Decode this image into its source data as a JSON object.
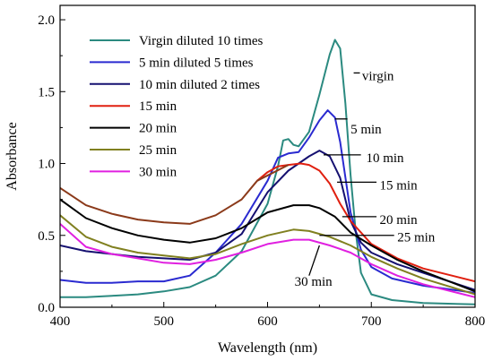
{
  "chart_data": {
    "type": "line",
    "xlabel": "Wavelength (nm)",
    "ylabel": "Absorbance",
    "xlim": [
      400,
      800
    ],
    "ylim": [
      0.0,
      2.1
    ],
    "xticks": [
      "400",
      "500",
      "600",
      "700",
      "800"
    ],
    "xtick_values": [
      400,
      500,
      600,
      700,
      800
    ],
    "yticks": [
      "0.0",
      "0.5",
      "1.0",
      "1.5",
      "2.0"
    ],
    "ytick_values": [
      0.0,
      0.5,
      1.0,
      1.5,
      2.0
    ],
    "grid": false,
    "legend_position": "top-left",
    "series": [
      {
        "name": "Virgin diluted 10 times",
        "color": "#2b8a80",
        "points": [
          [
            400,
            0.07
          ],
          [
            425,
            0.07
          ],
          [
            450,
            0.08
          ],
          [
            475,
            0.09
          ],
          [
            500,
            0.11
          ],
          [
            525,
            0.14
          ],
          [
            550,
            0.22
          ],
          [
            575,
            0.39
          ],
          [
            600,
            0.72
          ],
          [
            610,
            0.98
          ],
          [
            615,
            1.16
          ],
          [
            620,
            1.17
          ],
          [
            625,
            1.13
          ],
          [
            630,
            1.12
          ],
          [
            640,
            1.22
          ],
          [
            650,
            1.48
          ],
          [
            660,
            1.76
          ],
          [
            665,
            1.86
          ],
          [
            670,
            1.8
          ],
          [
            675,
            1.42
          ],
          [
            680,
            0.92
          ],
          [
            685,
            0.52
          ],
          [
            690,
            0.24
          ],
          [
            700,
            0.09
          ],
          [
            720,
            0.05
          ],
          [
            750,
            0.03
          ],
          [
            800,
            0.02
          ]
        ]
      },
      {
        "name": "5 min diluted 5 times",
        "color": "#2a2ad0",
        "points": [
          [
            400,
            0.19
          ],
          [
            425,
            0.17
          ],
          [
            450,
            0.17
          ],
          [
            475,
            0.18
          ],
          [
            500,
            0.18
          ],
          [
            525,
            0.22
          ],
          [
            550,
            0.38
          ],
          [
            575,
            0.58
          ],
          [
            600,
            0.88
          ],
          [
            610,
            1.04
          ],
          [
            620,
            1.07
          ],
          [
            630,
            1.08
          ],
          [
            640,
            1.18
          ],
          [
            650,
            1.3
          ],
          [
            658,
            1.37
          ],
          [
            665,
            1.32
          ],
          [
            670,
            1.15
          ],
          [
            680,
            0.66
          ],
          [
            690,
            0.4
          ],
          [
            700,
            0.28
          ],
          [
            720,
            0.2
          ],
          [
            750,
            0.15
          ],
          [
            800,
            0.1
          ]
        ]
      },
      {
        "name": "10 min diluted 2 times",
        "color": "#151070",
        "points": [
          [
            400,
            0.43
          ],
          [
            425,
            0.39
          ],
          [
            450,
            0.37
          ],
          [
            475,
            0.35
          ],
          [
            500,
            0.34
          ],
          [
            525,
            0.33
          ],
          [
            550,
            0.38
          ],
          [
            575,
            0.51
          ],
          [
            600,
            0.8
          ],
          [
            620,
            0.95
          ],
          [
            640,
            1.05
          ],
          [
            650,
            1.09
          ],
          [
            660,
            1.05
          ],
          [
            670,
            0.9
          ],
          [
            680,
            0.6
          ],
          [
            690,
            0.45
          ],
          [
            700,
            0.38
          ],
          [
            725,
            0.3
          ],
          [
            750,
            0.24
          ],
          [
            800,
            0.12
          ]
        ]
      },
      {
        "name": "15 min",
        "color": "#e02010",
        "points": [
          [
            590,
            0.88
          ],
          [
            600,
            0.94
          ],
          [
            610,
            0.98
          ],
          [
            620,
            0.99
          ],
          [
            632,
            1.0
          ],
          [
            640,
            0.99
          ],
          [
            650,
            0.95
          ],
          [
            660,
            0.86
          ],
          [
            670,
            0.72
          ],
          [
            680,
            0.6
          ],
          [
            690,
            0.52
          ],
          [
            700,
            0.44
          ],
          [
            725,
            0.34
          ],
          [
            750,
            0.27
          ],
          [
            800,
            0.18
          ]
        ]
      },
      {
        "name": "20 min",
        "color": "#000000",
        "points": [
          [
            400,
            0.75
          ],
          [
            425,
            0.62
          ],
          [
            450,
            0.55
          ],
          [
            475,
            0.5
          ],
          [
            500,
            0.47
          ],
          [
            525,
            0.45
          ],
          [
            550,
            0.48
          ],
          [
            575,
            0.55
          ],
          [
            600,
            0.66
          ],
          [
            625,
            0.71
          ],
          [
            640,
            0.71
          ],
          [
            650,
            0.69
          ],
          [
            665,
            0.63
          ],
          [
            680,
            0.52
          ],
          [
            700,
            0.43
          ],
          [
            725,
            0.33
          ],
          [
            750,
            0.25
          ],
          [
            800,
            0.11
          ]
        ]
      },
      {
        "name": "25 min",
        "color": "#808020",
        "points": [
          [
            400,
            0.64
          ],
          [
            425,
            0.49
          ],
          [
            450,
            0.42
          ],
          [
            475,
            0.38
          ],
          [
            500,
            0.36
          ],
          [
            525,
            0.34
          ],
          [
            550,
            0.37
          ],
          [
            575,
            0.44
          ],
          [
            600,
            0.5
          ],
          [
            625,
            0.54
          ],
          [
            640,
            0.53
          ],
          [
            660,
            0.49
          ],
          [
            680,
            0.43
          ],
          [
            700,
            0.35
          ],
          [
            725,
            0.27
          ],
          [
            750,
            0.2
          ],
          [
            800,
            0.09
          ]
        ]
      },
      {
        "name": "30 min",
        "color": "#e020e0",
        "points": [
          [
            400,
            0.58
          ],
          [
            425,
            0.42
          ],
          [
            450,
            0.37
          ],
          [
            475,
            0.34
          ],
          [
            500,
            0.31
          ],
          [
            525,
            0.3
          ],
          [
            550,
            0.33
          ],
          [
            575,
            0.38
          ],
          [
            600,
            0.44
          ],
          [
            625,
            0.47
          ],
          [
            640,
            0.47
          ],
          [
            660,
            0.43
          ],
          [
            680,
            0.38
          ],
          [
            700,
            0.3
          ],
          [
            725,
            0.22
          ],
          [
            750,
            0.16
          ],
          [
            800,
            0.07
          ]
        ]
      },
      {
        "name": "",
        "color": "#8b3a1a",
        "points": [
          [
            400,
            0.83
          ],
          [
            425,
            0.71
          ],
          [
            450,
            0.65
          ],
          [
            475,
            0.61
          ],
          [
            500,
            0.59
          ],
          [
            525,
            0.58
          ],
          [
            550,
            0.64
          ],
          [
            575,
            0.75
          ],
          [
            590,
            0.88
          ],
          [
            620,
            0.99
          ]
        ]
      }
    ],
    "annotations": [
      {
        "text": "virgin",
        "x": 683,
        "y": 1.63,
        "tx": 691,
        "ty": 1.61,
        "lx2": 689
      },
      {
        "text": "5 min",
        "x": 665,
        "y": 1.31,
        "tx": 680,
        "ty": 1.24,
        "lx2": 677
      },
      {
        "text": "10 min",
        "x": 654,
        "y": 1.06,
        "tx": 695,
        "ty": 1.04,
        "lx2": 690
      },
      {
        "text": "15 min",
        "x": 667,
        "y": 0.87,
        "tx": 708,
        "ty": 0.85,
        "lx2": 705
      },
      {
        "text": "20 min",
        "x": 672,
        "y": 0.63,
        "tx": 708,
        "ty": 0.61,
        "lx2": 705
      },
      {
        "text": "25 min",
        "x": 650,
        "y": 0.5,
        "tx": 725,
        "ty": 0.49,
        "lx2": 722
      },
      {
        "text": "30 min",
        "x": 650,
        "y": 0.43,
        "tx": 626,
        "ty": 0.18,
        "lx2": 640,
        "ly2": 0.22
      }
    ]
  }
}
